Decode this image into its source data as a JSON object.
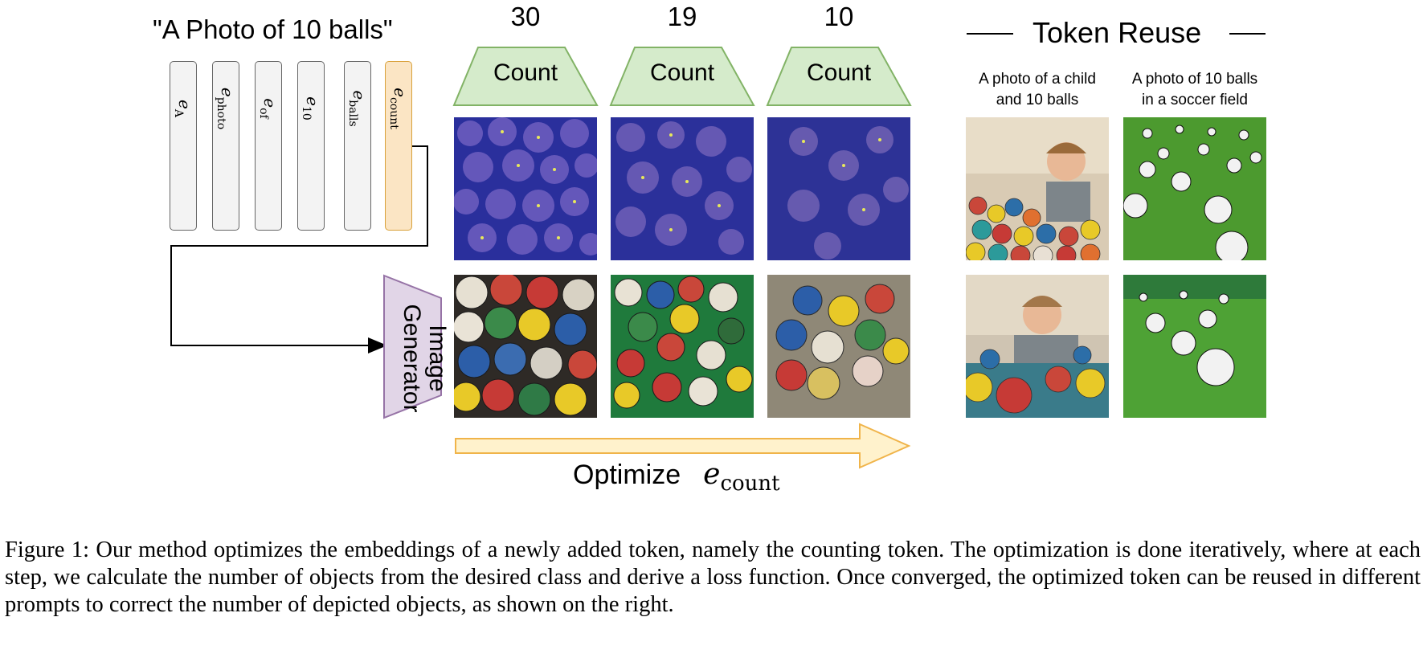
{
  "prompt": "\"A Photo of 10 balls\"",
  "tokens": [
    {
      "base": "e",
      "sub": "A"
    },
    {
      "base": "e",
      "sub": "photo"
    },
    {
      "base": "e",
      "sub": "of"
    },
    {
      "base": "e",
      "sub": "10"
    },
    {
      "base": "e",
      "sub": "balls"
    },
    {
      "base": "e",
      "sub": "count"
    }
  ],
  "counts": [
    "30",
    "19",
    "10"
  ],
  "count_label": "Count",
  "generator_label_line1": "Image",
  "generator_label_line2": "Generator",
  "optimize": {
    "label": "Optimize",
    "math_base": "e",
    "math_sub": "count"
  },
  "reuse": {
    "title": "Token Reuse",
    "captions": [
      {
        "line1": "A photo of a child",
        "line2": "and 10 balls"
      },
      {
        "line1": "A photo of 10 balls",
        "line2": "in a soccer field"
      }
    ]
  },
  "caption": "Figure 1: Our method optimizes the embeddings of a newly added token, namely the counting token. The optimization is done iteratively, where at each step, we calculate the number of objects from the desired class and derive a loss function. Once converged, the optimized token can be reused in different prompts to correct the number of depicted objects, as shown on the right.",
  "colors": {
    "count_box": "#d5ebcb",
    "count_box_stroke": "#82b366",
    "generator_fill": "#e1d5e7",
    "generator_stroke": "#9673a6",
    "token_count_fill": "#fbe5c4",
    "arrow_fill": "#fff2cc",
    "arrow_stroke": "#f0b44a"
  }
}
